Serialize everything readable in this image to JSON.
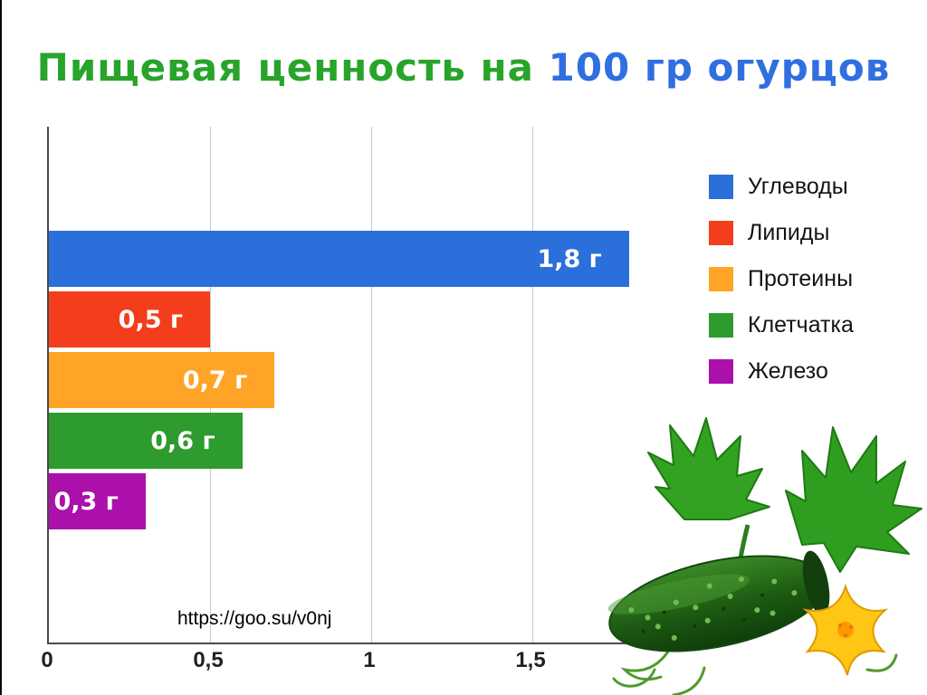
{
  "title": {
    "part_green": "Пищевая ценность на",
    "part_blue": "100 гр огурцов"
  },
  "chart_data": {
    "type": "bar",
    "orientation": "horizontal",
    "title": "Пищевая ценность на 100 гр огурцов",
    "unit": "г",
    "categories": [
      "Углеводы",
      "Липиды",
      "Протеины",
      "Клетчатка",
      "Железо"
    ],
    "values": [
      1.8,
      0.5,
      0.7,
      0.6,
      0.3
    ],
    "value_labels": [
      "1,8 г",
      "0,5 г",
      "0,7 г",
      "0,6 г",
      "0,3 г"
    ],
    "colors": [
      "#2b6fdb",
      "#f43d1c",
      "#ffa426",
      "#2d9b2d",
      "#ab10ab"
    ],
    "xlim": [
      0,
      2
    ],
    "x_ticks": [
      0,
      0.5,
      1,
      1.5
    ],
    "x_tick_labels": [
      "0",
      "0,5",
      "1",
      "1,5"
    ],
    "grid": true,
    "legend_position": "right",
    "legend": [
      "Углеводы",
      "Липиды",
      "Протеины",
      "Клетчатка",
      "Железо"
    ]
  },
  "footer": {
    "link": "https://goo.su/v0nj"
  },
  "illustration": {
    "name": "cucumber-with-flower-and-leaves"
  }
}
